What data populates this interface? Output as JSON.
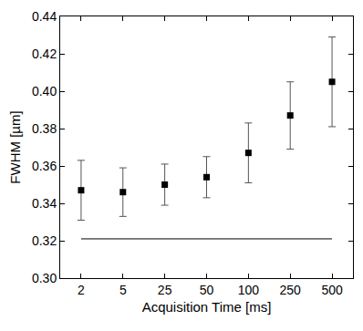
{
  "chart_data": {
    "type": "scatter",
    "x_label": "Acquisition Time [ms]",
    "y_label": "FWHM [µm]",
    "categories": [
      "2",
      "5",
      "25",
      "50",
      "100",
      "250",
      "500"
    ],
    "series": [
      {
        "type": "scatter",
        "color": "#000000",
        "marker": "square",
        "values": [
          0.347,
          0.346,
          0.35,
          0.354,
          0.367,
          0.387,
          0.405
        ],
        "error": [
          0.016,
          0.013,
          0.011,
          0.011,
          0.016,
          0.018,
          0.024
        ]
      },
      {
        "type": "line",
        "color": "#000000",
        "line_style": "solid",
        "values": [
          0.321,
          0.321,
          0.321,
          0.321,
          0.321,
          0.321,
          0.321
        ]
      }
    ],
    "ylim": [
      0.3,
      0.44
    ],
    "yticks": [
      {
        "value": 0.3,
        "label": "0.30"
      },
      {
        "value": 0.32,
        "label": "0.32"
      },
      {
        "value": 0.34,
        "label": "0.34"
      },
      {
        "value": 0.36,
        "label": "0.36"
      },
      {
        "value": 0.38,
        "label": "0.38"
      },
      {
        "value": 0.4,
        "label": "0.40"
      },
      {
        "value": 0.42,
        "label": "0.42"
      },
      {
        "value": 0.44,
        "label": "0.44"
      }
    ],
    "grid": false
  }
}
